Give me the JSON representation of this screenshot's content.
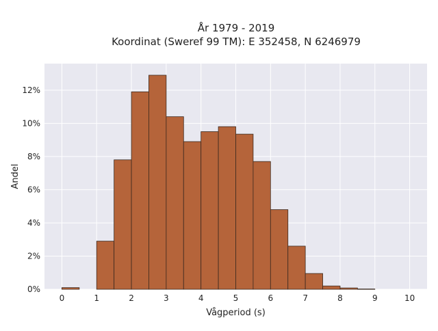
{
  "chart_data": {
    "type": "bar",
    "title": "År 1979 - 2019",
    "subtitle": "Koordinat (Sweref 99 TM): E 352458, N 6246979",
    "xlabel": "Vågperiod (s)",
    "ylabel": "Andel",
    "bin_width": 0.5,
    "bin_starts": [
      0,
      0.5,
      1,
      1.5,
      2,
      2.5,
      3,
      3.5,
      4,
      4.5,
      5,
      5.5,
      6,
      6.5,
      7,
      7.5,
      8,
      8.5,
      9,
      9.5
    ],
    "values": [
      0.1,
      0,
      2.9,
      7.8,
      11.9,
      12.9,
      10.4,
      8.9,
      9.5,
      9.8,
      9.35,
      7.7,
      4.8,
      2.6,
      0.95,
      0.2,
      0.08,
      0.02,
      0,
      0
    ],
    "xlim": [
      -0.5,
      10.5
    ],
    "ylim": [
      0,
      13.6
    ],
    "xticks": [
      "0",
      "1",
      "2",
      "3",
      "4",
      "5",
      "6",
      "7",
      "8",
      "9",
      "10"
    ],
    "xtick_values": [
      0,
      1,
      2,
      3,
      4,
      5,
      6,
      7,
      8,
      9,
      10
    ],
    "yticks": [
      "0%",
      "2%",
      "4%",
      "6%",
      "8%",
      "10%",
      "12%"
    ],
    "ytick_values": [
      0,
      2,
      4,
      6,
      8,
      10,
      12
    ],
    "grid": true,
    "colors": {
      "bar": "#b5643a",
      "bar_edge": "#3b2a20",
      "plot_bg": "#e8e8f0",
      "grid": "#ffffff"
    }
  }
}
